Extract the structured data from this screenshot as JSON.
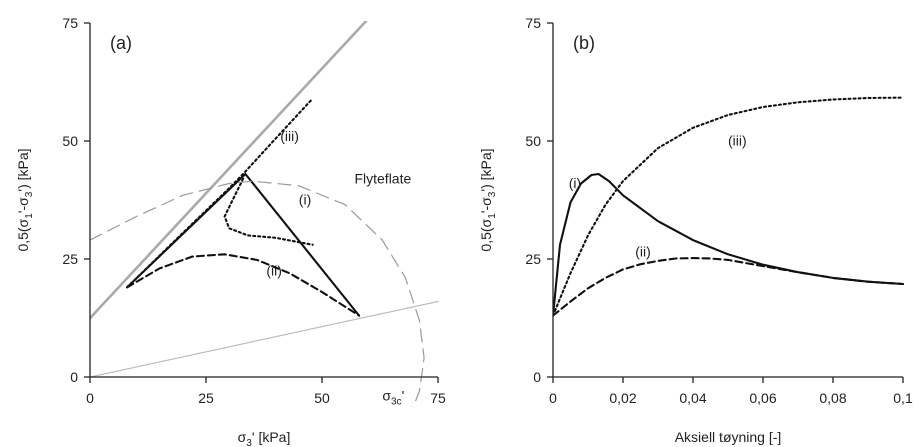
{
  "chart_data": [
    {
      "type": "line",
      "panel_label": "(a)",
      "xlabel": "σ3' [kPa]",
      "ylabel": "0,5(σ1'-σ3') [kPa]",
      "xlim": [
        0,
        75
      ],
      "ylim": [
        0,
        75
      ],
      "x_ticks": [
        0,
        25,
        50,
        75
      ],
      "x_tick_labels": [
        "0",
        "25",
        "50",
        "75"
      ],
      "y_ticks": [
        0,
        25,
        50,
        75
      ],
      "y_tick_labels": [
        "0",
        "25",
        "50",
        "75"
      ],
      "annotations": [
        {
          "text": "(i)",
          "x": 45,
          "y": 36.5
        },
        {
          "text": "(ii)",
          "x": 38,
          "y": 21.5
        },
        {
          "text": "(iii)",
          "x": 41,
          "y": 50
        },
        {
          "text": "Flyteflate",
          "x": 57,
          "y": 41
        },
        {
          "text": "σ3c'",
          "x": 63,
          "y": -5
        }
      ],
      "series": [
        {
          "name": "(i)",
          "style": "solid",
          "color": "#111111",
          "x": [
            8,
            33.5,
            58
          ],
          "y": [
            19,
            43,
            13
          ]
        },
        {
          "name": "(ii)",
          "style": "dashed",
          "color": "#111111",
          "x": [
            8,
            15,
            22,
            29,
            36,
            43,
            50,
            58
          ],
          "y": [
            19,
            23,
            25.5,
            26,
            24.8,
            22,
            18,
            13
          ]
        },
        {
          "name": "(iii)",
          "style": "dotted",
          "color": "#111111",
          "x": [
            8,
            20,
            30,
            33,
            40,
            48
          ],
          "y": [
            19,
            30.5,
            40,
            43,
            50.5,
            59
          ]
        },
        {
          "name": "",
          "style": "dotted",
          "color": "#111111",
          "x": [
            33,
            31,
            29,
            30,
            34,
            40,
            48
          ],
          "y": [
            42,
            38,
            34,
            31.5,
            30,
            29.5,
            28
          ]
        },
        {
          "name": "",
          "style": "solid",
          "color": "#aaaaaa",
          "x": [
            -8,
            61
          ],
          "y": [
            4,
            77
          ]
        },
        {
          "name": "",
          "style": "solid",
          "color": "#bdbdbd",
          "x": [
            0,
            75
          ],
          "y": [
            0,
            16
          ]
        },
        {
          "name": "",
          "style": "long-dashed",
          "color": "#9a9a9a",
          "x": [
            0,
            10,
            20,
            30,
            35,
            45,
            55,
            63,
            68,
            71,
            72,
            71,
            69,
            67
          ],
          "y": [
            29,
            34,
            38.5,
            41,
            41.5,
            40.5,
            36.5,
            29,
            21,
            12,
            4,
            -3,
            -8,
            -12
          ]
        }
      ]
    },
    {
      "type": "line",
      "panel_label": "(b)",
      "xlabel": "Aksiell tøyning [-]",
      "ylabel": "0,5(σ1'-σ3') [kPa]",
      "xlim": [
        0,
        0.1
      ],
      "ylim": [
        0,
        75
      ],
      "x_ticks": [
        0,
        0.02,
        0.04,
        0.06,
        0.08,
        0.1
      ],
      "x_tick_labels": [
        "0",
        "0,02",
        "0,04",
        "0,06",
        "0,08",
        "0,1"
      ],
      "y_ticks": [
        0,
        25,
        50,
        75
      ],
      "y_tick_labels": [
        "0",
        "25",
        "50",
        "75"
      ],
      "annotations": [
        {
          "text": "(i)",
          "x": 0.0045,
          "y": 40
        },
        {
          "text": "(ii)",
          "x": 0.0235,
          "y": 25.5
        },
        {
          "text": "(iii)",
          "x": 0.05,
          "y": 49
        }
      ],
      "series": [
        {
          "name": "(i)",
          "style": "solid",
          "color": "#111111",
          "x": [
            0,
            0.002,
            0.005,
            0.008,
            0.011,
            0.013,
            0.016,
            0.02,
            0.03,
            0.04,
            0.05,
            0.06,
            0.07,
            0.08,
            0.09,
            0.1
          ],
          "y": [
            13,
            28,
            37,
            41,
            42.8,
            43,
            41.5,
            38.5,
            33,
            29,
            26,
            23.8,
            22.2,
            21,
            20.2,
            19.7
          ]
        },
        {
          "name": "(ii)",
          "style": "dashed",
          "color": "#111111",
          "x": [
            0,
            0.005,
            0.01,
            0.015,
            0.02,
            0.025,
            0.03,
            0.035,
            0.04,
            0.045,
            0.05,
            0.06,
            0.07,
            0.08,
            0.09,
            0.1
          ],
          "y": [
            13,
            16,
            18.8,
            21,
            22.8,
            23.9,
            24.6,
            25.1,
            25.2,
            25.1,
            24.8,
            23.5,
            22.2,
            21,
            20.2,
            19.7
          ]
        },
        {
          "name": "(iii)",
          "style": "dotted",
          "color": "#111111",
          "x": [
            0,
            0.005,
            0.01,
            0.015,
            0.02,
            0.03,
            0.04,
            0.05,
            0.06,
            0.07,
            0.08,
            0.09,
            0.1
          ],
          "y": [
            13,
            22,
            30,
            36.5,
            41.5,
            48.5,
            52.8,
            55.5,
            57.2,
            58.2,
            58.8,
            59.1,
            59.2
          ]
        }
      ]
    }
  ]
}
